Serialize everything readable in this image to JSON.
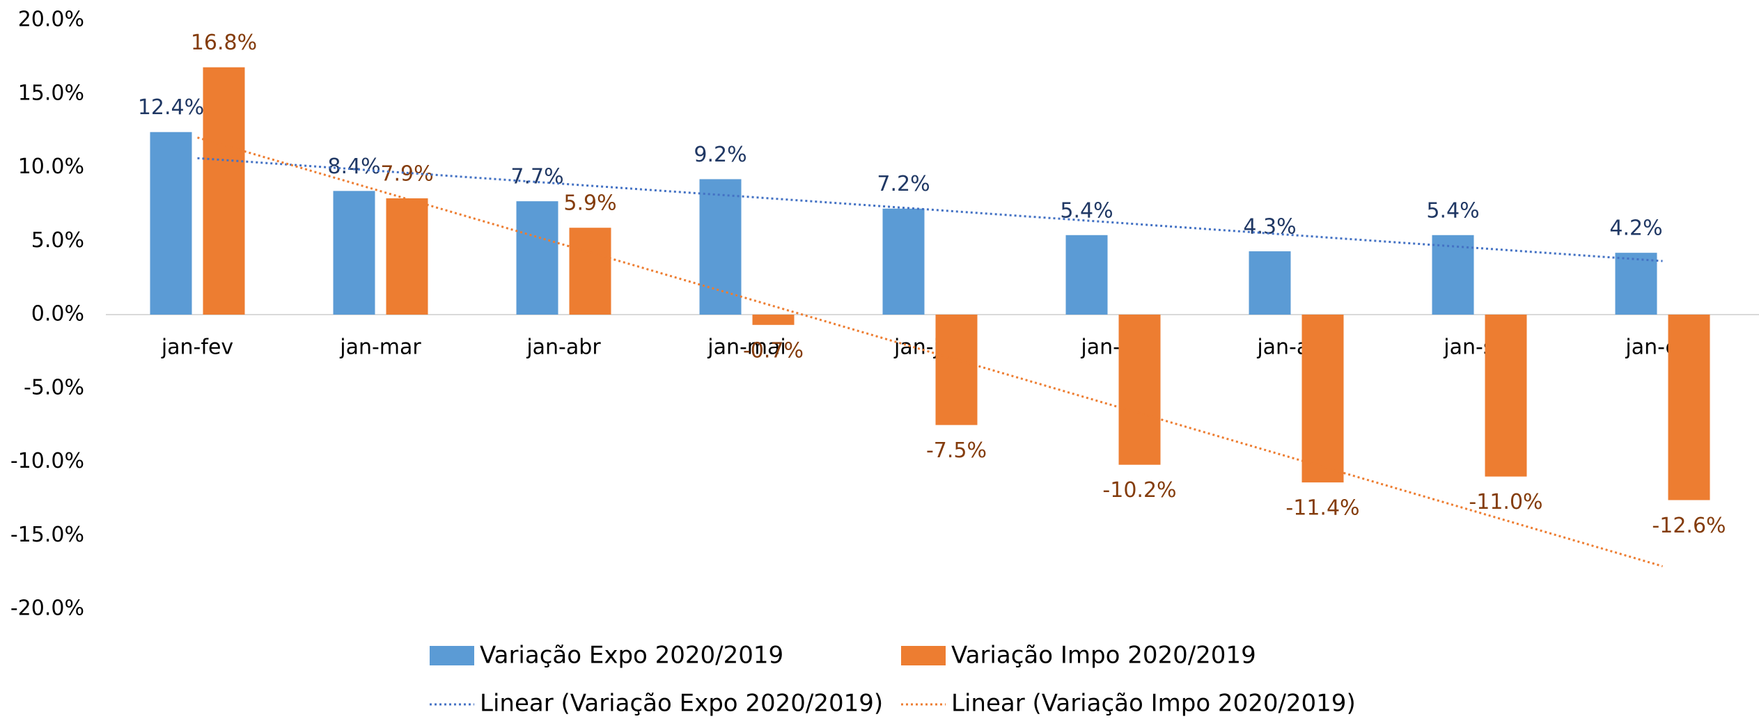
{
  "chart_data": {
    "type": "bar",
    "categories": [
      "jan-fev",
      "jan-mar",
      "jan-abr",
      "jan-mai",
      "jan-jun",
      "jan-jul",
      "jan-ago",
      "jan-set",
      "jan-out"
    ],
    "series": [
      {
        "name": "Variação Expo 2020/2019",
        "color": "#5b9bd5",
        "label_color": "#203864",
        "values": [
          12.4,
          8.4,
          7.7,
          9.2,
          7.2,
          5.4,
          4.3,
          5.4,
          4.2
        ],
        "value_labels": [
          "12.4%",
          "8.4%",
          "7.7%",
          "9.2%",
          "7.2%",
          "5.4%",
          "4.3%",
          "5.4%",
          "4.2%"
        ]
      },
      {
        "name": "Variação Impo 2020/2019",
        "color": "#ed7d31",
        "label_color": "#843c0c",
        "values": [
          16.8,
          7.9,
          5.9,
          -0.7,
          -7.5,
          -10.2,
          -11.4,
          -11.0,
          -12.6
        ],
        "value_labels": [
          "16.8%",
          "7.9%",
          "5.9%",
          "-0.7%",
          "-7.5%",
          "-10.2%",
          "-11.4%",
          "-11.0%",
          "-12.6%"
        ]
      }
    ],
    "trendlines": [
      {
        "name": "Linear (Variação Expo 2020/2019)",
        "series": 0,
        "color": "#4472c4"
      },
      {
        "name": "Linear (Variação Impo 2020/2019)",
        "series": 1,
        "color": "#ed7d31"
      }
    ],
    "ylim": [
      -20,
      20
    ],
    "yticks": [
      {
        "value": 20,
        "label": "20.0%"
      },
      {
        "value": 15,
        "label": "15.0%"
      },
      {
        "value": 10,
        "label": "10.0%"
      },
      {
        "value": 5,
        "label": "5.0%"
      },
      {
        "value": 0,
        "label": "0.0%"
      },
      {
        "value": -5,
        "label": "-5.0%"
      },
      {
        "value": -10,
        "label": "-10.0%"
      },
      {
        "value": -15,
        "label": "-15.0%"
      },
      {
        "value": -20,
        "label": "-20.0%"
      }
    ],
    "grid": false,
    "legend": "bottom"
  }
}
